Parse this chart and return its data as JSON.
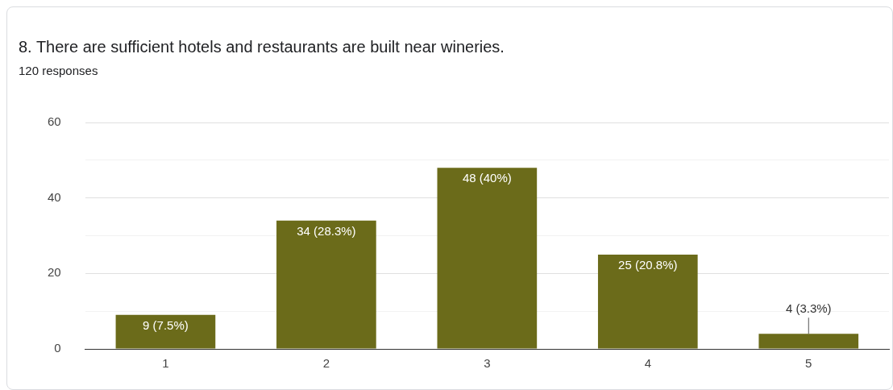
{
  "chart_data": {
    "type": "bar",
    "title": "8. There are sufficient hotels and restaurants are built near wineries.",
    "subtitle": "120 responses",
    "categories": [
      "1",
      "2",
      "3",
      "4",
      "5"
    ],
    "values": [
      9,
      34,
      48,
      25,
      4
    ],
    "value_labels": [
      "9 (7.5%)",
      "34 (28.3%)",
      "48 (40%)",
      "25 (20.8%)",
      "4 (3.3%)"
    ],
    "color": "#6b6b1a",
    "ylim": [
      0,
      60
    ],
    "yticks": [
      0,
      {
        "value": 10,
        "label": null
      },
      20,
      {
        "value": 30,
        "label": null
      },
      40,
      {
        "value": 50,
        "label": null
      },
      60
    ],
    "grid": "y",
    "legend": false
  }
}
